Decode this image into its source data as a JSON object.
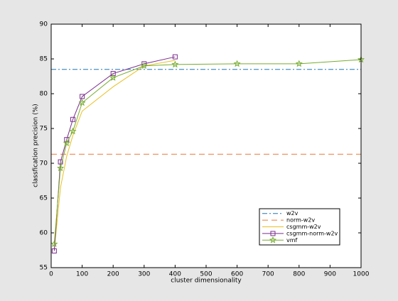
{
  "chart_data": {
    "type": "line",
    "xlabel": "cluster dimensionality",
    "ylabel": "classfication precision (%)",
    "xlim": [
      0,
      1000
    ],
    "xticks": [
      0,
      100,
      200,
      300,
      400,
      500,
      600,
      700,
      800,
      900,
      1000
    ],
    "ylim": [
      55,
      90
    ],
    "yticks": [
      55,
      60,
      65,
      70,
      75,
      80,
      85,
      90
    ],
    "grid": false,
    "legend": "lower right",
    "series": [
      {
        "name": "w2v",
        "color": "#1f77b4",
        "dash": "dashdot",
        "marker": "none",
        "x": [
          0,
          1000
        ],
        "values": [
          83.5,
          83.5
        ]
      },
      {
        "name": "norm-w2v",
        "color": "#ee7733",
        "dash": "dashed",
        "marker": "none",
        "x": [
          0,
          1000
        ],
        "values": [
          71.3,
          71.3
        ]
      },
      {
        "name": "csgmm-w2v",
        "color": "#e8c020",
        "dash": "solid",
        "marker": "none",
        "x": [
          10,
          30,
          50,
          70,
          100,
          200,
          300,
          400
        ],
        "values": [
          57.5,
          66.5,
          71,
          74,
          77.5,
          81,
          84,
          84.8
        ]
      },
      {
        "name": "csgmm-norm-w2v",
        "color": "#7b2d8e",
        "dash": "solid",
        "marker": "square",
        "x": [
          10,
          30,
          50,
          70,
          100,
          200,
          300,
          400
        ],
        "values": [
          57.4,
          70.2,
          73.4,
          76.3,
          79.6,
          82.9,
          84.3,
          85.3
        ]
      },
      {
        "name": "vmf",
        "color": "#77ac30",
        "dash": "solid",
        "marker": "star",
        "x": [
          10,
          30,
          50,
          70,
          100,
          200,
          300,
          400,
          600,
          800,
          1000
        ],
        "values": [
          58.4,
          69.3,
          72.9,
          74.6,
          78.7,
          82.3,
          84.0,
          84.2,
          84.3,
          84.3,
          84.9
        ]
      }
    ]
  }
}
